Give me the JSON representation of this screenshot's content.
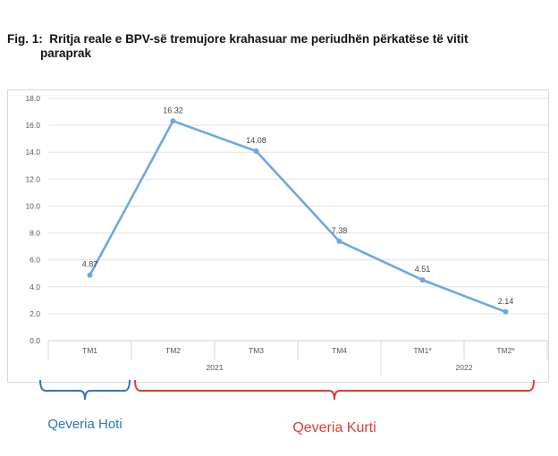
{
  "figure": {
    "title_prefix": "Fig. 1:",
    "title_line1": "Rritja reale e BPV-së tremujore krahasuar me periudhën përkatëse të vitit",
    "title_line2": "paraprak"
  },
  "chart_data": {
    "type": "line",
    "categories": [
      "TM1",
      "TM2",
      "TM3",
      "TM4",
      "TM1*",
      "TM2*"
    ],
    "year_groups": [
      {
        "label": "2021",
        "categories": [
          "TM1",
          "TM2",
          "TM3",
          "TM4"
        ]
      },
      {
        "label": "2022",
        "categories": [
          "TM1*",
          "TM2*"
        ]
      }
    ],
    "series": [
      {
        "values": [
          4.87,
          16.32,
          14.08,
          7.38,
          4.51,
          2.14
        ],
        "color": "#6fa8dc"
      }
    ],
    "data_labels": [
      "4.87",
      "16.32",
      "14.08",
      "7.38",
      "4.51",
      "2.14"
    ],
    "y_ticks": [
      "0.0",
      "2.0",
      "4.0",
      "6.0",
      "8.0",
      "10.0",
      "12.0",
      "14.0",
      "16.0",
      "18.0"
    ],
    "ylim": [
      0,
      18
    ],
    "grid": true,
    "legend": "none"
  },
  "annotations": [
    {
      "label": "Qeveria Hoti",
      "color": "#2e75b6",
      "categories": [
        "TM1"
      ]
    },
    {
      "label": "Qeveria Kurti",
      "color": "#e03a3a",
      "categories": [
        "TM2",
        "TM3",
        "TM4",
        "TM1*",
        "TM2*"
      ]
    }
  ]
}
